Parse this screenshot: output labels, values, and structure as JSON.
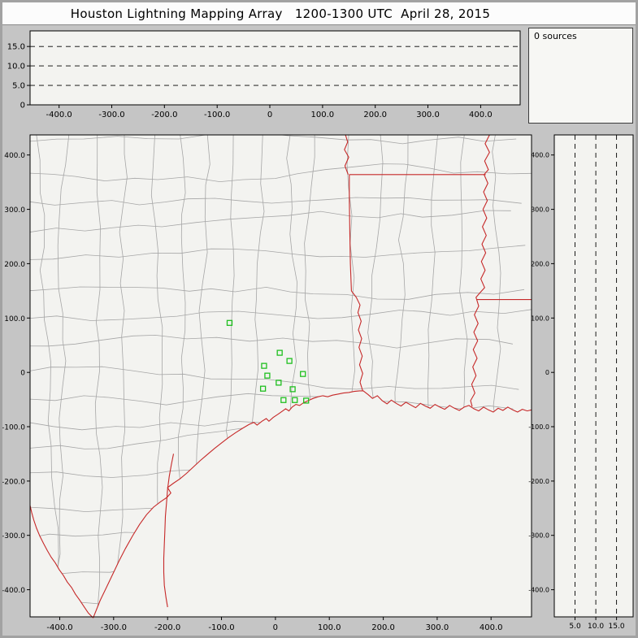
{
  "window": {
    "title": "Houston Lightning Mapping Array   1200-1300 UTC  April 28, 2015"
  },
  "sources_panel": {
    "text": "0 sources"
  },
  "colors": {
    "window_bg": "#c5c5c5",
    "panel_bg": "#f3f3f0",
    "county_line": "#a6a6a6",
    "state_line": "#c62828",
    "station": "#1fbf1f",
    "axis": "#000000"
  },
  "chart_data": [
    {
      "id": "altitude-vs-east-west",
      "type": "scatter",
      "points": [],
      "xlim": [
        -455,
        475
      ],
      "ylim": [
        0,
        19
      ],
      "x_ticks": [
        -400,
        -300,
        -200,
        -100,
        0,
        100,
        200,
        300,
        400
      ],
      "x_tick_labels": [
        "-400.0",
        "-300.0",
        "-200.0",
        "-100.0",
        "0",
        "100.0",
        "200.0",
        "300.0",
        "400.0"
      ],
      "y_ticks": [
        0,
        5,
        10,
        15
      ],
      "y_tick_labels": [
        "0",
        "5.0",
        "10.0",
        "15.0"
      ],
      "y_gridlines": [
        5,
        10,
        15
      ],
      "grid_style": "dashed"
    },
    {
      "id": "plan-view-map",
      "type": "scatter",
      "xlim": [
        -455,
        475
      ],
      "ylim": [
        -450,
        437
      ],
      "x_ticks": [
        -400,
        -300,
        -200,
        -100,
        0,
        100,
        200,
        300,
        400
      ],
      "x_tick_labels": [
        "-400.0",
        "-300.0",
        "-200.0",
        "-100.0",
        "0",
        "100.0",
        "200.0",
        "300.0",
        "400.0"
      ],
      "y_ticks": [
        400,
        300,
        200,
        100,
        0,
        -100,
        -200,
        -300,
        -400
      ],
      "y_tick_labels": [
        "400.0",
        "300.0",
        "200.0",
        "100.0",
        "0",
        "-100.0",
        "-200.0",
        "-300.0",
        "-400.0"
      ],
      "stations": [
        [
          -85,
          91
        ],
        [
          8,
          36
        ],
        [
          -21,
          12
        ],
        [
          26,
          21
        ],
        [
          -15,
          -6
        ],
        [
          -23,
          -30
        ],
        [
          6,
          -19
        ],
        [
          15,
          -51
        ],
        [
          32,
          -31
        ],
        [
          51,
          -3
        ],
        [
          57,
          -52
        ],
        [
          36,
          -51
        ]
      ],
      "outlines": {
        "gulf_coastline": [
          [
            -338,
            -452
          ],
          [
            -325,
            -420
          ],
          [
            -313,
            -395
          ],
          [
            -301,
            -370
          ],
          [
            -290,
            -347
          ],
          [
            -278,
            -324
          ],
          [
            -265,
            -301
          ],
          [
            -252,
            -280
          ],
          [
            -239,
            -262
          ],
          [
            -226,
            -248
          ],
          [
            -213,
            -238
          ],
          [
            -201,
            -230
          ],
          [
            -194,
            -222
          ],
          [
            -200,
            -212
          ],
          [
            -189,
            -204
          ],
          [
            -177,
            -196
          ],
          [
            -165,
            -186
          ],
          [
            -152,
            -174
          ],
          [
            -139,
            -162
          ],
          [
            -126,
            -151
          ],
          [
            -113,
            -140
          ],
          [
            -100,
            -130
          ],
          [
            -87,
            -120
          ],
          [
            -74,
            -111
          ],
          [
            -61,
            -103
          ],
          [
            -49,
            -96
          ],
          [
            -40,
            -92
          ],
          [
            -34,
            -97
          ],
          [
            -25,
            -90
          ],
          [
            -17,
            -85
          ],
          [
            -12,
            -90
          ],
          [
            -4,
            -83
          ],
          [
            5,
            -77
          ],
          [
            12,
            -72
          ],
          [
            19,
            -67
          ],
          [
            25,
            -71
          ],
          [
            31,
            -64
          ],
          [
            38,
            -59
          ],
          [
            45,
            -61
          ],
          [
            52,
            -56
          ],
          [
            61,
            -52
          ],
          [
            70,
            -48
          ],
          [
            79,
            -45
          ],
          [
            88,
            -43
          ],
          [
            97,
            -45
          ],
          [
            106,
            -42
          ],
          [
            116,
            -40
          ],
          [
            126,
            -38
          ],
          [
            136,
            -37
          ],
          [
            146,
            -35
          ],
          [
            156,
            -34
          ],
          [
            163,
            -34
          ],
          [
            172,
            -41
          ],
          [
            180,
            -48
          ],
          [
            189,
            -43
          ],
          [
            198,
            -52
          ],
          [
            207,
            -58
          ],
          [
            215,
            -51
          ],
          [
            224,
            -57
          ],
          [
            233,
            -62
          ],
          [
            242,
            -55
          ],
          [
            251,
            -60
          ],
          [
            260,
            -65
          ],
          [
            269,
            -57
          ],
          [
            278,
            -62
          ],
          [
            287,
            -66
          ],
          [
            296,
            -59
          ],
          [
            305,
            -64
          ],
          [
            314,
            -68
          ],
          [
            323,
            -61
          ],
          [
            332,
            -66
          ],
          [
            341,
            -70
          ],
          [
            350,
            -64
          ],
          [
            359,
            -61
          ],
          [
            368,
            -67
          ],
          [
            377,
            -71
          ],
          [
            386,
            -64
          ],
          [
            395,
            -69
          ],
          [
            404,
            -73
          ],
          [
            413,
            -66
          ],
          [
            422,
            -70
          ],
          [
            431,
            -64
          ],
          [
            440,
            -69
          ],
          [
            449,
            -73
          ],
          [
            458,
            -68
          ],
          [
            467,
            -71
          ],
          [
            475,
            -69
          ]
        ],
        "rio_grande": [
          [
            -338,
            -452
          ],
          [
            -347,
            -443
          ],
          [
            -355,
            -431
          ],
          [
            -363,
            -419
          ],
          [
            -371,
            -408
          ],
          [
            -378,
            -396
          ],
          [
            -386,
            -386
          ],
          [
            -393,
            -374
          ],
          [
            -401,
            -363
          ],
          [
            -408,
            -351
          ],
          [
            -416,
            -340
          ],
          [
            -423,
            -328
          ],
          [
            -430,
            -315
          ],
          [
            -437,
            -301
          ],
          [
            -443,
            -287
          ],
          [
            -448,
            -272
          ],
          [
            -452,
            -258
          ],
          [
            -455,
            -245
          ]
        ],
        "padre_island_barrier": [
          [
            -189,
            -150
          ],
          [
            -193,
            -170
          ],
          [
            -197,
            -192
          ],
          [
            -200,
            -215
          ],
          [
            -202,
            -240
          ],
          [
            -204,
            -265
          ],
          [
            -205,
            -290
          ],
          [
            -206,
            -316
          ],
          [
            -207,
            -342
          ],
          [
            -207,
            -368
          ],
          [
            -206,
            -392
          ],
          [
            -203,
            -414
          ],
          [
            -200,
            -432
          ]
        ],
        "texas_louisiana_border": [
          [
            162,
            -34
          ],
          [
            157,
            -18
          ],
          [
            162,
            -2
          ],
          [
            156,
            14
          ],
          [
            161,
            30
          ],
          [
            155,
            46
          ],
          [
            160,
            62
          ],
          [
            154,
            78
          ],
          [
            159,
            94
          ],
          [
            153,
            110
          ],
          [
            157,
            124
          ],
          [
            150,
            138
          ],
          [
            141,
            150
          ],
          [
            139,
            200
          ],
          [
            138,
            260
          ],
          [
            137,
            320
          ],
          [
            137,
            364
          ]
        ],
        "louisiana_arkansas_border": [
          [
            137,
            364
          ],
          [
            390,
            364
          ]
        ],
        "texas_arkansas_border": [
          [
            135,
            364
          ],
          [
            129,
            380
          ],
          [
            136,
            396
          ],
          [
            128,
            410
          ],
          [
            134,
            424
          ],
          [
            130,
            437
          ]
        ],
        "mississippi_river": [
          [
            397,
            437
          ],
          [
            389,
            421
          ],
          [
            397,
            405
          ],
          [
            388,
            389
          ],
          [
            395,
            373
          ],
          [
            387,
            364
          ],
          [
            394,
            348
          ],
          [
            386,
            332
          ],
          [
            393,
            316
          ],
          [
            385,
            300
          ],
          [
            392,
            284
          ],
          [
            384,
            268
          ],
          [
            391,
            252
          ],
          [
            383,
            236
          ],
          [
            390,
            220
          ],
          [
            382,
            204
          ],
          [
            389,
            188
          ],
          [
            381,
            172
          ],
          [
            388,
            156
          ],
          [
            379,
            146
          ],
          [
            372,
            138
          ],
          [
            377,
            122
          ],
          [
            369,
            106
          ],
          [
            376,
            90
          ],
          [
            368,
            74
          ],
          [
            375,
            58
          ],
          [
            367,
            42
          ],
          [
            374,
            26
          ],
          [
            366,
            10
          ],
          [
            372,
            -6
          ],
          [
            364,
            -22
          ],
          [
            370,
            -38
          ],
          [
            362,
            -52
          ],
          [
            365,
            -63
          ]
        ],
        "louisiana_mississippi_border": [
          [
            373,
            134
          ],
          [
            475,
            134
          ]
        ]
      }
    },
    {
      "id": "altitude-vs-north-south",
      "type": "scatter",
      "points": [],
      "xlim": [
        0,
        19
      ],
      "ylim": [
        -450,
        437
      ],
      "x_ticks": [
        5,
        10,
        15
      ],
      "x_tick_labels": [
        "5.0",
        "10.0",
        "15.0"
      ],
      "x_gridlines": [
        5,
        10,
        15
      ],
      "y_ticks": [
        400,
        300,
        200,
        100,
        0,
        -100,
        -200,
        -300,
        -400
      ],
      "y_tick_labels": [
        "400.0",
        "300.0",
        "200.0",
        "100.0",
        "0",
        "-100.0",
        "-200.0",
        "-300.0",
        "-400.0"
      ],
      "grid_style": "dashed"
    }
  ]
}
